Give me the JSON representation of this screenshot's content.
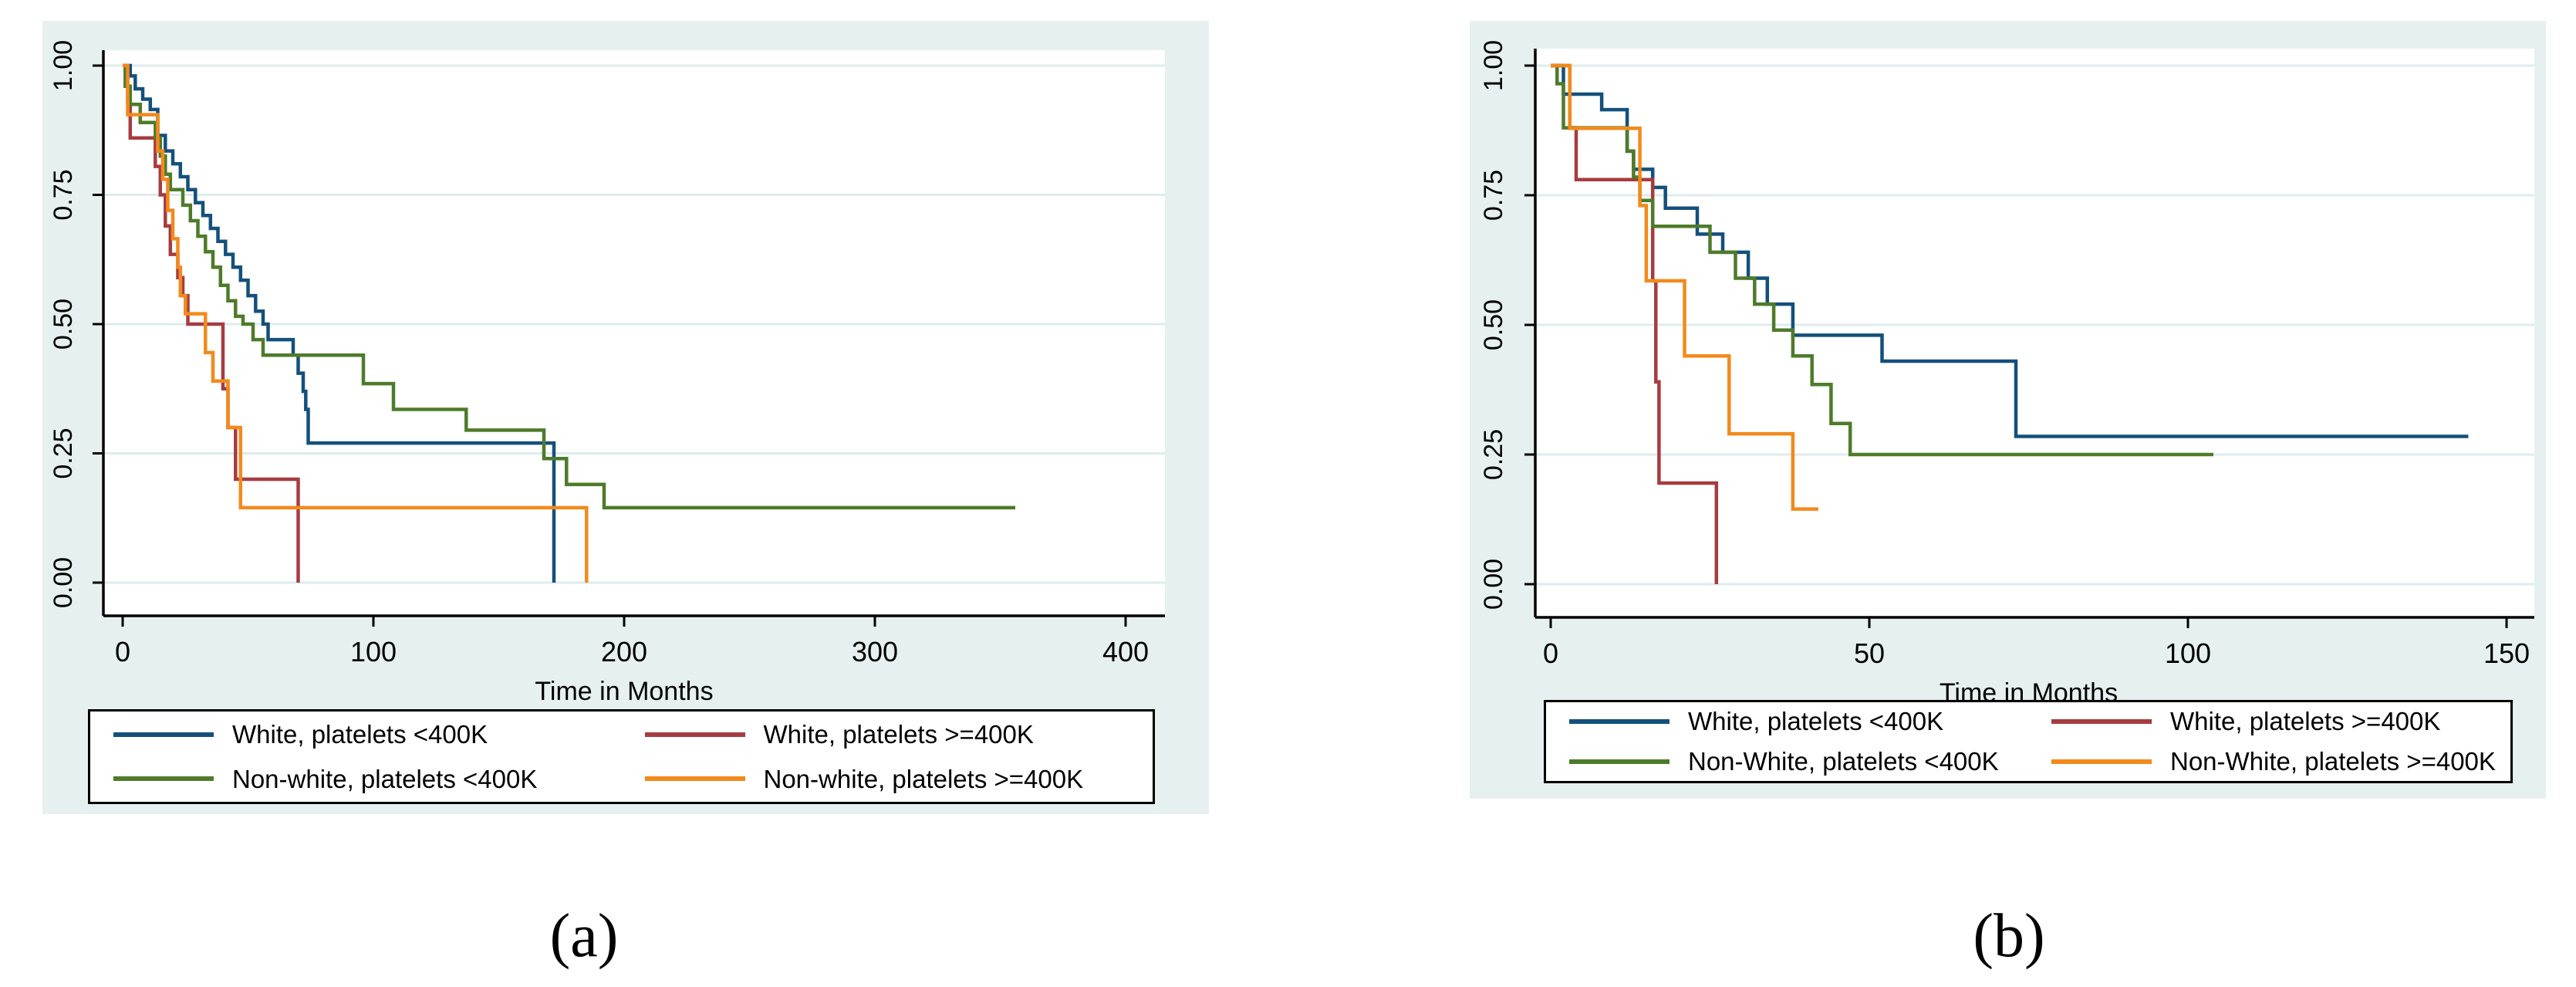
{
  "figure": {
    "caption_a": "(a)",
    "caption_b": "(b)"
  },
  "colors": {
    "navy": "#14507b",
    "maroon": "#a63c40",
    "forest": "#4e7b2a",
    "orange": "#f28a1c",
    "panel_bg": "#e7f0f1",
    "plot_bg": "#ffffff",
    "grid": "#dfeced",
    "axis": "#000000"
  },
  "chart_data": [
    {
      "id": "a",
      "type": "line",
      "subtype": "kaplan-meier-step",
      "title": "",
      "xlabel": "Time in Months",
      "ylabel": "",
      "xlim": [
        0,
        400
      ],
      "ylim": [
        0,
        1
      ],
      "xticks": [
        0,
        100,
        200,
        300,
        400
      ],
      "yticks": [
        "0.00",
        "0.25",
        "0.50",
        "0.75",
        "1.00"
      ],
      "grid": true,
      "legend_position": "below",
      "series": [
        {
          "name": "White, platelets <400K",
          "color_key": "navy",
          "points": [
            [
              0,
              1.0
            ],
            [
              3,
              0.98
            ],
            [
              5,
              0.955
            ],
            [
              8,
              0.935
            ],
            [
              11,
              0.915
            ],
            [
              14,
              0.865
            ],
            [
              17,
              0.835
            ],
            [
              20,
              0.81
            ],
            [
              23,
              0.785
            ],
            [
              26,
              0.76
            ],
            [
              29,
              0.735
            ],
            [
              32,
              0.71
            ],
            [
              35,
              0.685
            ],
            [
              38,
              0.66
            ],
            [
              41,
              0.635
            ],
            [
              44,
              0.61
            ],
            [
              47,
              0.585
            ],
            [
              50,
              0.555
            ],
            [
              53,
              0.525
            ],
            [
              56,
              0.5
            ],
            [
              58,
              0.47
            ],
            [
              68,
              0.44
            ],
            [
              70,
              0.405
            ],
            [
              72,
              0.37
            ],
            [
              73,
              0.335
            ],
            [
              74,
              0.27
            ],
            [
              172,
              0.0
            ]
          ]
        },
        {
          "name": "White, platelets >=400K",
          "color_key": "maroon",
          "points": [
            [
              0,
              1.0
            ],
            [
              2,
              0.93
            ],
            [
              3,
              0.86
            ],
            [
              13,
              0.805
            ],
            [
              15,
              0.75
            ],
            [
              17,
              0.69
            ],
            [
              19,
              0.635
            ],
            [
              22,
              0.59
            ],
            [
              24,
              0.555
            ],
            [
              26,
              0.5
            ],
            [
              40,
              0.375
            ],
            [
              42,
              0.3
            ],
            [
              45,
              0.2
            ],
            [
              70,
              0.0
            ]
          ]
        },
        {
          "name": "Non-white, platelets <400K",
          "color_key": "forest",
          "points": [
            [
              0,
              1.0
            ],
            [
              1,
              0.96
            ],
            [
              3,
              0.925
            ],
            [
              7,
              0.89
            ],
            [
              13,
              0.86
            ],
            [
              15,
              0.825
            ],
            [
              17,
              0.79
            ],
            [
              19,
              0.76
            ],
            [
              24,
              0.73
            ],
            [
              27,
              0.7
            ],
            [
              30,
              0.67
            ],
            [
              33,
              0.64
            ],
            [
              36,
              0.61
            ],
            [
              39,
              0.575
            ],
            [
              42,
              0.545
            ],
            [
              45,
              0.515
            ],
            [
              48,
              0.5
            ],
            [
              52,
              0.47
            ],
            [
              56,
              0.44
            ],
            [
              96,
              0.385
            ],
            [
              108,
              0.335
            ],
            [
              137,
              0.295
            ],
            [
              168,
              0.24
            ],
            [
              177,
              0.19
            ],
            [
              192,
              0.145
            ],
            [
              356,
              0.145
            ]
          ]
        },
        {
          "name": "Non-white, platelets >=400K",
          "color_key": "orange",
          "points": [
            [
              0,
              1.0
            ],
            [
              2,
              0.905
            ],
            [
              14,
              0.835
            ],
            [
              16,
              0.78
            ],
            [
              18,
              0.72
            ],
            [
              20,
              0.665
            ],
            [
              22,
              0.61
            ],
            [
              23,
              0.555
            ],
            [
              25,
              0.52
            ],
            [
              33,
              0.445
            ],
            [
              36,
              0.39
            ],
            [
              42,
              0.3
            ],
            [
              47,
              0.145
            ],
            [
              183,
              0.145
            ],
            [
              185,
              0.0
            ]
          ]
        }
      ]
    },
    {
      "id": "b",
      "type": "line",
      "subtype": "kaplan-meier-step",
      "title": "",
      "xlabel": "Time in Months",
      "ylabel": "",
      "xlim": [
        0,
        150
      ],
      "ylim": [
        0,
        1
      ],
      "xticks": [
        0,
        50,
        100,
        150
      ],
      "yticks": [
        "0.00",
        "0.25",
        "0.50",
        "0.75",
        "1.00"
      ],
      "grid": true,
      "legend_position": "below",
      "series": [
        {
          "name": "White, platelets <400K",
          "color_key": "navy",
          "points": [
            [
              0,
              1.0
            ],
            [
              2,
              0.945
            ],
            [
              8,
              0.915
            ],
            [
              12,
              0.835
            ],
            [
              13,
              0.8
            ],
            [
              16,
              0.765
            ],
            [
              18,
              0.725
            ],
            [
              23,
              0.675
            ],
            [
              27,
              0.64
            ],
            [
              31,
              0.59
            ],
            [
              34,
              0.54
            ],
            [
              38,
              0.48
            ],
            [
              52,
              0.43
            ],
            [
              73,
              0.285
            ],
            [
              144,
              0.285
            ]
          ]
        },
        {
          "name": "White, platelets >=400K",
          "color_key": "maroon",
          "points": [
            [
              0,
              1.0
            ],
            [
              3,
              0.88
            ],
            [
              4,
              0.78
            ],
            [
              16,
              0.585
            ],
            [
              16.5,
              0.39
            ],
            [
              17,
              0.195
            ],
            [
              26,
              0.0
            ]
          ]
        },
        {
          "name": "Non-White, platelets <400K",
          "color_key": "forest",
          "points": [
            [
              0,
              1.0
            ],
            [
              1,
              0.965
            ],
            [
              2,
              0.88
            ],
            [
              12,
              0.835
            ],
            [
              13,
              0.785
            ],
            [
              14,
              0.74
            ],
            [
              16,
              0.69
            ],
            [
              25,
              0.64
            ],
            [
              29,
              0.59
            ],
            [
              32,
              0.54
            ],
            [
              35,
              0.49
            ],
            [
              38,
              0.44
            ],
            [
              41,
              0.385
            ],
            [
              44,
              0.31
            ],
            [
              47,
              0.25
            ],
            [
              104,
              0.25
            ]
          ]
        },
        {
          "name": "Non-White, platelets >=400K",
          "color_key": "orange",
          "points": [
            [
              0,
              1.0
            ],
            [
              3,
              0.879
            ],
            [
              14,
              0.73
            ],
            [
              15,
              0.585
            ],
            [
              21,
              0.44
            ],
            [
              28,
              0.29
            ],
            [
              38,
              0.145
            ],
            [
              42,
              0.145
            ]
          ]
        }
      ]
    }
  ]
}
